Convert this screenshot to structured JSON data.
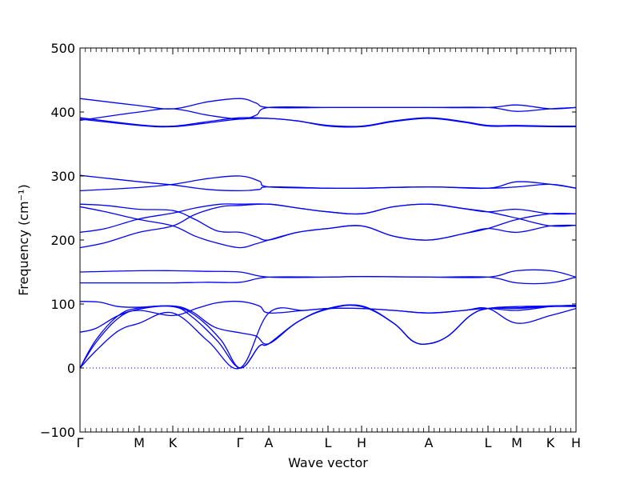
{
  "chart_data": {
    "type": "line",
    "title": "",
    "xlabel": "Wave vector",
    "ylabel": "Frequency (cm⁻¹)",
    "ylim": [
      -100,
      500
    ],
    "yticks": [
      -100,
      0,
      100,
      200,
      300,
      400,
      500
    ],
    "line_color": "#0000ff",
    "zero_line": {
      "y": 0,
      "style": "dotted",
      "color": "#0000ff"
    },
    "grid": false,
    "xlim": [
      0,
      15.5
    ],
    "high_symmetry_points": [
      {
        "label": "Γ",
        "x": 0.0
      },
      {
        "label": "M",
        "x": 1.85
      },
      {
        "label": "K",
        "x": 2.9
      },
      {
        "label": "Γ",
        "x": 5.0
      },
      {
        "label": "A",
        "x": 5.9
      },
      {
        "label": "L",
        "x": 7.75
      },
      {
        "label": "H",
        "x": 8.8
      },
      {
        "label": "A",
        "x": 10.9
      },
      {
        "label": "L",
        "x": 12.75
      },
      {
        "label": "M",
        "x": 13.65
      },
      {
        "label": "K",
        "x": 14.7
      },
      {
        "label": "H",
        "x": 15.5
      }
    ],
    "series": [
      {
        "values": [
          [
            0,
            0
          ],
          [
            0.5,
            27
          ],
          [
            1.2,
            58
          ],
          [
            1.85,
            70
          ],
          [
            2.9,
            86
          ],
          [
            4.0,
            42
          ],
          [
            5.0,
            0
          ],
          [
            5.9,
            86
          ],
          [
            7.0,
            90
          ],
          [
            7.75,
            93
          ],
          [
            8.8,
            93
          ],
          [
            9.8,
            90
          ],
          [
            10.9,
            86
          ],
          [
            12.0,
            90
          ],
          [
            12.75,
            93
          ],
          [
            13.65,
            70
          ],
          [
            14.7,
            82
          ],
          [
            15.5,
            93
          ]
        ]
      },
      {
        "values": [
          [
            0,
            0
          ],
          [
            0.5,
            40
          ],
          [
            1.2,
            78
          ],
          [
            1.85,
            92
          ],
          [
            2.9,
            96
          ],
          [
            3.5,
            80
          ],
          [
            4.3,
            42
          ],
          [
            5.0,
            0
          ],
          [
            5.6,
            34
          ],
          [
            5.9,
            38
          ],
          [
            6.8,
            72
          ],
          [
            7.75,
            93
          ],
          [
            8.8,
            96
          ],
          [
            9.8,
            70
          ],
          [
            10.4,
            42
          ],
          [
            10.9,
            38
          ],
          [
            11.5,
            50
          ],
          [
            12.2,
            82
          ],
          [
            12.75,
            93
          ],
          [
            13.65,
            93
          ],
          [
            14.7,
            96
          ],
          [
            15.5,
            96
          ]
        ]
      },
      {
        "values": [
          [
            0,
            0
          ],
          [
            0.5,
            44
          ],
          [
            1.2,
            82
          ],
          [
            1.85,
            94
          ],
          [
            2.9,
            96
          ],
          [
            3.6,
            82
          ],
          [
            4.4,
            44
          ],
          [
            5.0,
            0
          ],
          [
            5.6,
            34
          ],
          [
            5.9,
            38
          ],
          [
            6.8,
            72
          ],
          [
            7.75,
            93
          ],
          [
            8.8,
            97
          ],
          [
            9.8,
            70
          ],
          [
            10.4,
            42
          ],
          [
            10.9,
            38
          ],
          [
            11.5,
            50
          ],
          [
            12.2,
            82
          ],
          [
            12.75,
            93
          ],
          [
            13.65,
            94
          ],
          [
            14.7,
            97
          ],
          [
            15.5,
            97
          ]
        ]
      },
      {
        "values": [
          [
            0,
            56
          ],
          [
            0.5,
            62
          ],
          [
            1.2,
            82
          ],
          [
            1.85,
            90
          ],
          [
            2.9,
            82
          ],
          [
            3.7,
            94
          ],
          [
            4.3,
            102
          ],
          [
            5.0,
            104
          ],
          [
            5.6,
            97
          ],
          [
            5.9,
            86
          ],
          [
            7.0,
            90
          ],
          [
            7.75,
            93
          ],
          [
            8.8,
            93
          ],
          [
            9.8,
            90
          ],
          [
            10.9,
            86
          ],
          [
            12.0,
            90
          ],
          [
            12.75,
            93
          ],
          [
            13.65,
            90
          ],
          [
            14.7,
            96
          ],
          [
            15.5,
            98
          ]
        ]
      },
      {
        "values": [
          [
            0,
            104
          ],
          [
            0.6,
            103
          ],
          [
            1.2,
            96
          ],
          [
            1.85,
            95
          ],
          [
            2.9,
            97
          ],
          [
            3.5,
            88
          ],
          [
            4.2,
            64
          ],
          [
            5.0,
            55
          ],
          [
            5.5,
            50
          ],
          [
            5.9,
            38
          ],
          [
            6.8,
            72
          ],
          [
            7.75,
            92
          ],
          [
            8.8,
            97
          ],
          [
            9.8,
            70
          ],
          [
            10.4,
            42
          ],
          [
            10.9,
            38
          ],
          [
            11.5,
            50
          ],
          [
            12.2,
            82
          ],
          [
            12.75,
            93
          ],
          [
            13.65,
            96
          ],
          [
            14.7,
            97
          ],
          [
            15.5,
            98
          ]
        ]
      },
      {
        "values": [
          [
            0,
            133
          ],
          [
            1.85,
            133
          ],
          [
            2.9,
            133
          ],
          [
            4.0,
            134
          ],
          [
            5.0,
            134
          ],
          [
            5.9,
            142
          ],
          [
            7.75,
            142
          ],
          [
            8.8,
            143
          ],
          [
            10.9,
            142
          ],
          [
            12.75,
            142
          ],
          [
            13.65,
            133
          ],
          [
            14.7,
            133
          ],
          [
            15.5,
            142
          ]
        ]
      },
      {
        "values": [
          [
            0,
            150
          ],
          [
            1.85,
            152
          ],
          [
            2.9,
            152
          ],
          [
            4.0,
            151
          ],
          [
            5.0,
            150
          ],
          [
            5.9,
            142
          ],
          [
            7.75,
            142
          ],
          [
            8.8,
            143
          ],
          [
            10.9,
            142
          ],
          [
            12.75,
            142
          ],
          [
            13.65,
            152
          ],
          [
            14.7,
            152
          ],
          [
            15.5,
            142
          ]
        ]
      },
      {
        "values": [
          [
            0,
            188
          ],
          [
            0.8,
            196
          ],
          [
            1.85,
            212
          ],
          [
            2.9,
            222
          ],
          [
            3.6,
            240
          ],
          [
            4.4,
            252
          ],
          [
            5.0,
            254
          ],
          [
            5.9,
            256
          ],
          [
            6.8,
            250
          ],
          [
            7.75,
            244
          ],
          [
            8.8,
            241
          ],
          [
            9.8,
            252
          ],
          [
            10.9,
            256
          ],
          [
            12.0,
            249
          ],
          [
            12.75,
            244
          ],
          [
            13.65,
            234
          ],
          [
            14.7,
            222
          ],
          [
            15.5,
            223
          ]
        ]
      },
      {
        "values": [
          [
            0,
            212
          ],
          [
            0.8,
            218
          ],
          [
            1.85,
            233
          ],
          [
            2.9,
            242
          ],
          [
            3.6,
            250
          ],
          [
            4.4,
            256
          ],
          [
            5.0,
            256
          ],
          [
            5.9,
            256
          ],
          [
            6.8,
            250
          ],
          [
            7.75,
            244
          ],
          [
            8.8,
            241
          ],
          [
            9.8,
            252
          ],
          [
            10.9,
            256
          ],
          [
            12.0,
            249
          ],
          [
            12.75,
            244
          ],
          [
            13.65,
            248
          ],
          [
            14.7,
            241
          ],
          [
            15.5,
            241
          ]
        ]
      },
      {
        "values": [
          [
            0,
            252
          ],
          [
            0.8,
            244
          ],
          [
            1.85,
            232
          ],
          [
            2.9,
            222
          ],
          [
            3.6,
            206
          ],
          [
            4.3,
            195
          ],
          [
            5.0,
            188
          ],
          [
            5.5,
            194
          ],
          [
            5.9,
            200
          ],
          [
            6.8,
            212
          ],
          [
            7.75,
            218
          ],
          [
            8.8,
            222
          ],
          [
            9.8,
            206
          ],
          [
            10.9,
            200
          ],
          [
            12.0,
            210
          ],
          [
            12.75,
            218
          ],
          [
            13.65,
            212
          ],
          [
            14.7,
            222
          ],
          [
            15.5,
            223
          ]
        ]
      },
      {
        "values": [
          [
            0,
            256
          ],
          [
            0.8,
            254
          ],
          [
            1.85,
            248
          ],
          [
            2.9,
            246
          ],
          [
            3.6,
            232
          ],
          [
            4.3,
            214
          ],
          [
            5.0,
            212
          ],
          [
            5.5,
            205
          ],
          [
            5.9,
            200
          ],
          [
            6.8,
            212
          ],
          [
            7.75,
            218
          ],
          [
            8.8,
            222
          ],
          [
            9.8,
            206
          ],
          [
            10.9,
            200
          ],
          [
            12.0,
            210
          ],
          [
            12.75,
            218
          ],
          [
            13.65,
            232
          ],
          [
            14.7,
            241
          ],
          [
            15.5,
            241
          ]
        ]
      },
      {
        "values": [
          [
            0,
            277
          ],
          [
            1.85,
            282
          ],
          [
            2.9,
            287
          ],
          [
            4.0,
            296
          ],
          [
            5.0,
            300
          ],
          [
            5.6,
            292
          ],
          [
            5.9,
            283
          ],
          [
            7.75,
            281
          ],
          [
            8.8,
            281
          ],
          [
            10.9,
            283
          ],
          [
            12.75,
            281
          ],
          [
            13.65,
            291
          ],
          [
            14.7,
            287
          ],
          [
            15.5,
            281
          ]
        ]
      },
      {
        "values": [
          [
            0,
            301
          ],
          [
            1.85,
            291
          ],
          [
            2.9,
            286
          ],
          [
            4.0,
            279
          ],
          [
            5.0,
            277
          ],
          [
            5.6,
            279
          ],
          [
            5.9,
            283
          ],
          [
            7.75,
            281
          ],
          [
            8.8,
            281
          ],
          [
            10.9,
            283
          ],
          [
            12.75,
            281
          ],
          [
            13.65,
            283
          ],
          [
            14.7,
            287
          ],
          [
            15.5,
            281
          ]
        ]
      },
      {
        "values": [
          [
            0,
            389
          ],
          [
            1.85,
            379
          ],
          [
            2.9,
            377
          ],
          [
            4.0,
            383
          ],
          [
            5.0,
            389
          ],
          [
            5.9,
            390
          ],
          [
            6.8,
            386
          ],
          [
            7.75,
            378
          ],
          [
            8.8,
            377
          ],
          [
            9.8,
            385
          ],
          [
            10.9,
            390
          ],
          [
            12.0,
            384
          ],
          [
            12.75,
            378
          ],
          [
            13.65,
            378
          ],
          [
            14.7,
            377
          ],
          [
            15.5,
            377
          ]
        ]
      },
      {
        "values": [
          [
            0,
            391
          ],
          [
            1.85,
            380
          ],
          [
            2.9,
            378
          ],
          [
            4.0,
            385
          ],
          [
            5.0,
            391
          ],
          [
            5.9,
            390
          ],
          [
            6.8,
            386
          ],
          [
            7.75,
            379
          ],
          [
            8.8,
            378
          ],
          [
            9.8,
            386
          ],
          [
            10.9,
            391
          ],
          [
            12.0,
            385
          ],
          [
            12.75,
            379
          ],
          [
            13.65,
            379
          ],
          [
            14.7,
            378
          ],
          [
            15.5,
            378
          ]
        ]
      },
      {
        "values": [
          [
            0,
            387
          ],
          [
            1.85,
            400
          ],
          [
            2.9,
            405
          ],
          [
            4.0,
            395
          ],
          [
            5.0,
            389
          ],
          [
            5.5,
            395
          ],
          [
            5.9,
            407
          ],
          [
            7.75,
            407
          ],
          [
            8.8,
            407
          ],
          [
            10.9,
            407
          ],
          [
            12.75,
            407
          ],
          [
            13.65,
            401
          ],
          [
            14.7,
            405
          ],
          [
            15.5,
            407
          ]
        ]
      },
      {
        "values": [
          [
            0,
            421
          ],
          [
            1.85,
            410
          ],
          [
            2.9,
            405
          ],
          [
            4.0,
            416
          ],
          [
            5.0,
            421
          ],
          [
            5.5,
            414
          ],
          [
            5.9,
            407
          ],
          [
            7.75,
            407
          ],
          [
            8.8,
            407
          ],
          [
            10.9,
            407
          ],
          [
            12.75,
            407
          ],
          [
            13.65,
            411
          ],
          [
            14.7,
            405
          ],
          [
            15.5,
            407
          ]
        ]
      }
    ]
  }
}
